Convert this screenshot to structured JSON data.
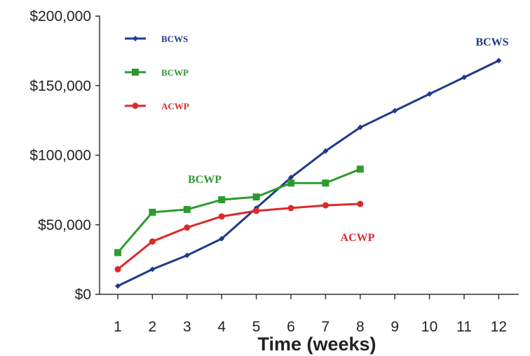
{
  "chart_data": {
    "type": "line",
    "xlabel": "Time (weeks)",
    "ylabel": "",
    "title": "",
    "x": [
      1,
      2,
      3,
      4,
      5,
      6,
      7,
      8,
      9,
      10,
      11,
      12
    ],
    "x_tick_labels": [
      "1",
      "2",
      "3",
      "4",
      "5",
      "6",
      "7",
      "8",
      "9",
      "10",
      "11",
      "12"
    ],
    "y_tick_labels": [
      "$0",
      "$50,000",
      "$100,000",
      "$150,000",
      "$200,000"
    ],
    "y_ticks": [
      0,
      50000,
      100000,
      150000,
      200000
    ],
    "ylim": [
      0,
      200000
    ],
    "grid": false,
    "legend_position": "top-left",
    "series": [
      {
        "name": "BCWS",
        "color": "#1f3a8a",
        "marker": "diamond",
        "x": [
          1,
          2,
          3,
          4,
          5,
          6,
          7,
          8,
          9,
          10,
          11,
          12
        ],
        "values": [
          6000,
          18000,
          28000,
          40000,
          62000,
          84000,
          103000,
          120000,
          132000,
          144000,
          156000,
          168000
        ]
      },
      {
        "name": "BCWP",
        "color": "#2e9a2e",
        "marker": "square",
        "x": [
          1,
          2,
          3,
          4,
          5,
          6,
          7,
          8
        ],
        "values": [
          30000,
          59000,
          61000,
          68000,
          70000,
          80000,
          80000,
          90000
        ]
      },
      {
        "name": "ACWP",
        "color": "#dc2a2a",
        "marker": "circle",
        "x": [
          1,
          2,
          3,
          4,
          5,
          6,
          7,
          8
        ],
        "values": [
          18000,
          38000,
          48000,
          56000,
          60000,
          62000,
          64000,
          65000
        ]
      }
    ],
    "annotations": [
      {
        "text": "BCWS",
        "series": "BCWS"
      },
      {
        "text": "BCWP",
        "series": "BCWP"
      },
      {
        "text": "ACWP",
        "series": "ACWP"
      }
    ]
  }
}
